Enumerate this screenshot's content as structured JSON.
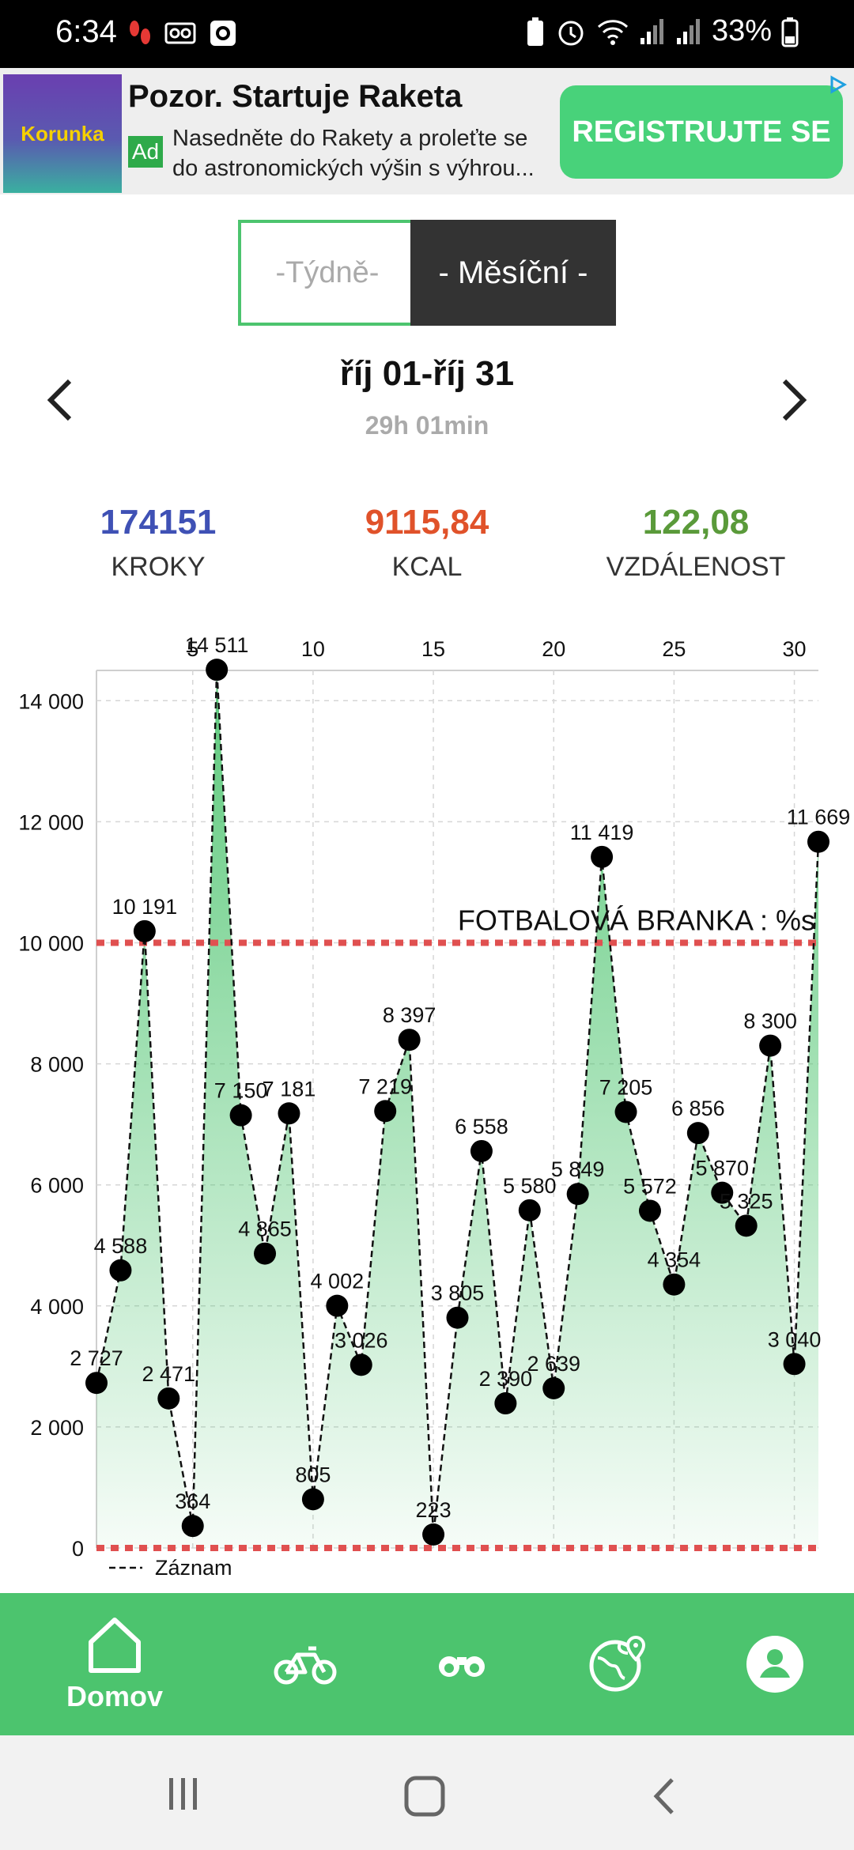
{
  "status_bar": {
    "time": "6:34",
    "battery": "33%",
    "icons_left": [
      "footsteps-icon",
      "voicemail-icon",
      "camera-app-icon"
    ],
    "icons_right": [
      "battery-saver-icon",
      "alarm-icon",
      "wifi-icon",
      "signal-icon",
      "signal-icon",
      "battery-icon"
    ]
  },
  "ad": {
    "logo": "Korunka",
    "title": "Pozor. Startuje Raketa",
    "badge": "Ad",
    "description": "Nasedněte do Rakety a proleťte se do astronomických výšin s výhrou...",
    "cta": "REGISTRUJTE SE"
  },
  "toggle": {
    "weekly": "-Týdně-",
    "monthly": "- Měsíční -",
    "selected": "monthly"
  },
  "period": {
    "range": "říj 01-říj 31",
    "duration": "29h 01min"
  },
  "stats": [
    {
      "value": "174151",
      "label": "KROKY",
      "color": "#3f51b5"
    },
    {
      "value": "9115,84",
      "label": "KCAL",
      "color": "#e0522a"
    },
    {
      "value": "122,08",
      "label": "VZDÁLENOST",
      "color": "#5a9a3a"
    }
  ],
  "chart_data": {
    "type": "line",
    "x_tick_labels": [
      "5",
      "10",
      "15",
      "20",
      "25",
      "30"
    ],
    "y_tick_labels": [
      "0",
      "2 000",
      "4 000",
      "6 000",
      "8 000",
      "10 000",
      "12 000",
      "14 000"
    ],
    "x": [
      1,
      2,
      3,
      4,
      5,
      6,
      7,
      8,
      9,
      10,
      11,
      12,
      13,
      14,
      15,
      16,
      17,
      18,
      19,
      20,
      21,
      22,
      23,
      24,
      25,
      26,
      27,
      28,
      29,
      30,
      31
    ],
    "values": [
      2727,
      4588,
      10191,
      2471,
      364,
      14511,
      7150,
      4865,
      7181,
      805,
      4002,
      3026,
      7219,
      8397,
      223,
      3805,
      6558,
      2390,
      5580,
      2639,
      5849,
      11419,
      7205,
      5572,
      4354,
      6856,
      5870,
      5325,
      8300,
      3040,
      11669
    ],
    "point_labels": [
      "2 727",
      "4 588",
      "10 191",
      "2 471",
      "364",
      "14 511",
      "7 150",
      "4 865",
      "7 181",
      "805",
      "4 002",
      "3 026",
      "7 219",
      "8 397",
      "223",
      "3 805",
      "6 558",
      "2 390",
      "5 580",
      "2 639",
      "5 849",
      "11 419",
      "7 205",
      "5 572",
      "4 354",
      "6 856",
      "5 870",
      "5 325",
      "8 300",
      "3 040",
      "11 669"
    ],
    "ylim": [
      0,
      14500
    ],
    "goal_value": 10000,
    "goal_label": "FOTBALOVÁ BRANKA : %s",
    "legend": "Záznam",
    "grid": true,
    "line_color": "#111111",
    "fill_color": "#4cc46e",
    "goal_color": "#e05050"
  },
  "nav": {
    "home_label": "Domov",
    "items": [
      "home-icon",
      "bike-icon",
      "binoculars-icon",
      "globe-icon",
      "profile-icon"
    ],
    "color": "#4cc46e"
  }
}
